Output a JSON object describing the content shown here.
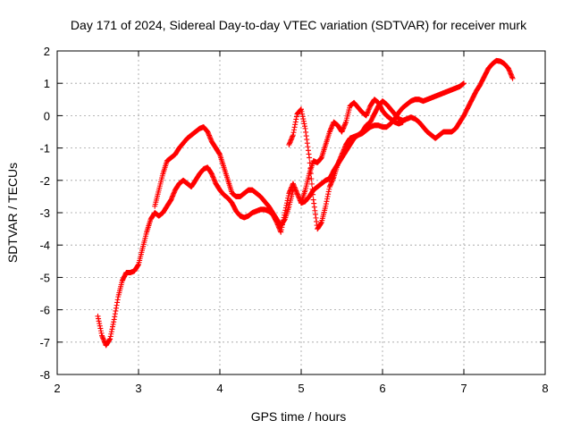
{
  "chart_data": {
    "type": "scatter",
    "title": "Day 171 of 2024, Sidereal Day-to-day VTEC variation (SDTVAR) for receiver murk",
    "xlabel": "GPS time / hours",
    "ylabel": "SDTVAR / TECUs",
    "xlim": [
      2,
      8
    ],
    "ylim": [
      -8,
      2
    ],
    "x_ticks": [
      "2",
      "3",
      "4",
      "5",
      "6",
      "7",
      "8"
    ],
    "y_ticks": [
      "-8",
      "-7",
      "-6",
      "-5",
      "-4",
      "-3",
      "-2",
      "-1",
      "0",
      "1",
      "2"
    ],
    "grid": true,
    "legend": "none",
    "marker": "+",
    "color": "#ff0000",
    "series": [
      {
        "x": [
          2.5,
          2.55,
          2.6,
          2.65,
          2.7,
          2.75,
          2.8,
          2.85,
          2.9,
          2.95,
          3.0,
          3.05,
          3.1,
          3.15,
          3.2,
          3.25,
          3.3,
          3.35,
          3.4,
          3.45,
          3.5,
          3.55,
          3.6,
          3.65,
          3.7,
          3.75,
          3.8,
          3.85,
          3.9,
          3.95,
          4.0,
          4.05,
          4.1,
          4.15,
          4.2,
          4.25,
          4.3,
          4.35,
          4.4,
          4.45,
          4.5,
          4.55,
          4.6,
          4.65,
          4.7,
          4.75,
          4.8,
          4.85,
          4.9,
          4.95,
          5.0,
          5.05,
          5.1,
          5.15,
          5.2,
          5.25,
          5.3,
          5.35,
          5.4,
          5.45,
          5.5,
          5.55,
          5.6,
          5.65,
          5.7,
          5.75,
          5.8,
          5.85,
          5.9,
          5.95,
          6.0,
          6.05,
          6.1,
          6.15,
          6.2,
          6.25,
          6.3,
          6.35,
          6.4,
          6.45,
          6.5,
          6.55,
          6.6,
          6.65,
          6.7,
          6.75,
          6.8,
          6.85,
          6.9,
          6.95,
          7.0
        ],
        "y": [
          -6.2,
          -6.8,
          -7.1,
          -6.9,
          -6.3,
          -5.6,
          -5.1,
          -4.85,
          -4.85,
          -4.8,
          -4.6,
          -4.1,
          -3.6,
          -3.2,
          -3.0,
          -3.1,
          -3.0,
          -2.8,
          -2.6,
          -2.3,
          -2.1,
          -2.0,
          -2.1,
          -2.2,
          -2.0,
          -1.8,
          -1.65,
          -1.6,
          -1.8,
          -2.1,
          -2.3,
          -2.45,
          -2.55,
          -2.7,
          -2.95,
          -3.1,
          -3.15,
          -3.1,
          -3.0,
          -2.95,
          -2.9,
          -2.9,
          -2.95,
          -3.05,
          -3.3,
          -3.6,
          -3.0,
          -2.4,
          -2.1,
          -2.4,
          -2.7,
          -2.65,
          -2.5,
          -2.3,
          -2.2,
          -2.1,
          -2.0,
          -1.95,
          -1.7,
          -1.5,
          -1.3,
          -1.1,
          -0.9,
          -0.7,
          -0.6,
          -0.55,
          -0.45,
          -0.35,
          -0.3,
          -0.3,
          -0.35,
          -0.35,
          -0.25,
          -0.1,
          0.1,
          0.25,
          0.35,
          0.45,
          0.5,
          0.5,
          0.45,
          0.5,
          0.55,
          0.6,
          0.65,
          0.7,
          0.75,
          0.8,
          0.85,
          0.9,
          1.0
        ]
      },
      {
        "x": [
          3.2,
          3.25,
          3.3,
          3.35,
          3.4,
          3.45,
          3.5,
          3.55,
          3.6,
          3.65,
          3.7,
          3.75,
          3.8,
          3.85,
          3.9,
          3.95,
          4.0,
          4.05,
          4.1,
          4.15,
          4.2,
          4.25,
          4.3,
          4.35,
          4.4,
          4.45,
          4.5,
          4.55,
          4.6,
          4.65,
          4.7,
          4.75,
          4.8,
          4.85,
          4.9
        ],
        "y": [
          -2.8,
          -2.3,
          -1.8,
          -1.4,
          -1.3,
          -1.2,
          -1.0,
          -0.85,
          -0.7,
          -0.6,
          -0.5,
          -0.4,
          -0.35,
          -0.5,
          -0.8,
          -1.0,
          -1.2,
          -1.6,
          -2.0,
          -2.4,
          -2.5,
          -2.5,
          -2.4,
          -2.3,
          -2.3,
          -2.4,
          -2.5,
          -2.65,
          -2.8,
          -3.0,
          -3.2,
          -3.4,
          -3.2,
          -2.8,
          -2.3
        ]
      },
      {
        "x": [
          4.85,
          4.9,
          4.95,
          5.0,
          5.05,
          5.1,
          5.15,
          5.2,
          5.25,
          5.3,
          5.35,
          5.4,
          5.45,
          5.5,
          5.55,
          5.6,
          5.65,
          5.7,
          5.75,
          5.8,
          5.85,
          5.9,
          5.95,
          6.0,
          6.05,
          6.1,
          6.15,
          6.2,
          6.25,
          6.3,
          6.35,
          6.4,
          6.45,
          6.5,
          6.55,
          6.6,
          6.65,
          6.7,
          6.75,
          6.8,
          6.85,
          6.9,
          6.95,
          7.0,
          7.05,
          7.1,
          7.15,
          7.2,
          7.25,
          7.3,
          7.35,
          7.4,
          7.45,
          7.5,
          7.55,
          7.6
        ],
        "y": [
          -0.9,
          -0.6,
          0.05,
          0.2,
          -0.4,
          -1.3,
          -2.6,
          -3.5,
          -3.3,
          -2.8,
          -2.2,
          -1.9,
          -1.5,
          -1.2,
          -0.9,
          -0.7,
          -0.65,
          -0.6,
          -0.5,
          -0.3,
          -0.2,
          0.05,
          0.3,
          0.45,
          0.35,
          0.2,
          0.05,
          -0.1,
          -0.15,
          -0.1,
          -0.05,
          -0.1,
          -0.2,
          -0.35,
          -0.5,
          -0.6,
          -0.7,
          -0.6,
          -0.5,
          -0.5,
          -0.5,
          -0.4,
          -0.2,
          0.0,
          0.25,
          0.5,
          0.75,
          0.95,
          1.2,
          1.45,
          1.6,
          1.7,
          1.68,
          1.6,
          1.45,
          1.15
        ]
      },
      {
        "x": [
          5.0,
          5.05,
          5.1,
          5.15,
          5.2,
          5.25,
          5.3,
          5.35,
          5.4,
          5.45,
          5.5,
          5.55,
          5.6,
          5.65,
          5.7,
          5.75,
          5.8,
          5.85,
          5.9,
          5.95,
          6.0,
          6.05,
          6.1,
          6.15,
          6.2,
          6.25
        ],
        "y": [
          -2.7,
          -2.3,
          -1.8,
          -1.4,
          -1.45,
          -1.3,
          -0.9,
          -0.5,
          -0.2,
          -0.3,
          -0.5,
          -0.2,
          0.3,
          0.4,
          0.25,
          0.1,
          0.0,
          0.3,
          0.5,
          0.4,
          0.15,
          0.0,
          -0.1,
          -0.2,
          -0.25,
          -0.2
        ]
      }
    ]
  }
}
